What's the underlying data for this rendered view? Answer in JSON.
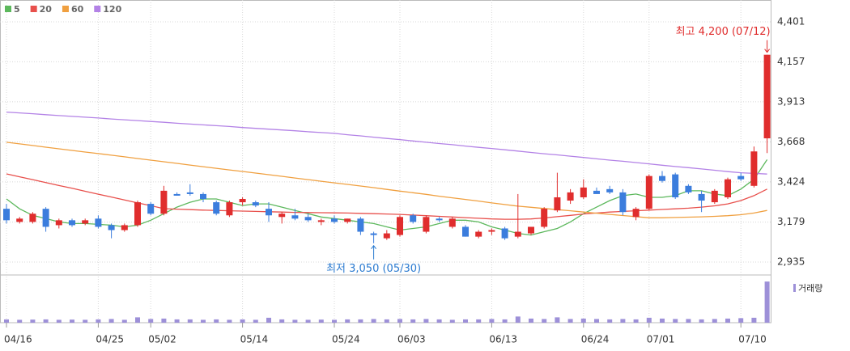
{
  "chart_data": {
    "type": "candlestick",
    "up_color": "#e02d2d",
    "down_color": "#3b7ddd",
    "categories": [
      "04/16",
      null,
      null,
      null,
      null,
      null,
      null,
      "04/25",
      null,
      null,
      null,
      "05/02",
      null,
      null,
      null,
      null,
      null,
      null,
      "05/14",
      null,
      null,
      null,
      null,
      null,
      null,
      "05/24",
      null,
      null,
      null,
      null,
      "06/03",
      null,
      null,
      null,
      null,
      null,
      null,
      "06/13",
      null,
      null,
      null,
      null,
      null,
      null,
      "06/24",
      null,
      null,
      null,
      null,
      "07/01",
      null,
      null,
      null,
      null,
      null,
      null,
      "07/10",
      null,
      null
    ],
    "open": [
      3260,
      3180,
      3180,
      3260,
      3160,
      3190,
      3170,
      3200,
      3160,
      3130,
      3160,
      3290,
      3230,
      3350,
      3360,
      3350,
      3300,
      3220,
      3300,
      3300,
      3260,
      3210,
      3220,
      3210,
      3180,
      3200,
      3180,
      3200,
      3110,
      3080,
      3100,
      3220,
      3120,
      3200,
      3150,
      3150,
      3090,
      3120,
      3140,
      3090,
      3110,
      3150,
      3250,
      3310,
      3330,
      3370,
      3380,
      3360,
      3210,
      3260,
      3460,
      3470,
      3400,
      3350,
      3300,
      3330,
      3460,
      3400,
      3690
    ],
    "high": [
      3290,
      3210,
      3240,
      3270,
      3200,
      3200,
      3200,
      3220,
      3170,
      3170,
      3310,
      3300,
      3400,
      3360,
      3410,
      3360,
      3310,
      3310,
      3330,
      3310,
      3300,
      3240,
      3260,
      3230,
      3200,
      3220,
      3200,
      3210,
      3120,
      3130,
      3220,
      3230,
      3220,
      3210,
      3210,
      3160,
      3130,
      3140,
      3150,
      3350,
      3150,
      3270,
      3480,
      3380,
      3440,
      3390,
      3400,
      3380,
      3270,
      3470,
      3490,
      3480,
      3410,
      3370,
      3380,
      3450,
      3480,
      3640,
      4200
    ],
    "low": [
      3170,
      3170,
      3170,
      3120,
      3140,
      3150,
      3160,
      3140,
      3080,
      3120,
      3150,
      3220,
      3220,
      3340,
      3340,
      3300,
      3220,
      3210,
      3280,
      3270,
      3180,
      3170,
      3190,
      3180,
      3160,
      3170,
      3170,
      3100,
      3050,
      3070,
      3090,
      3170,
      3110,
      3180,
      3140,
      3090,
      3080,
      3100,
      3070,
      3080,
      3100,
      3140,
      3240,
      3290,
      3320,
      3350,
      3350,
      3220,
      3190,
      3250,
      3420,
      3320,
      3350,
      3240,
      3290,
      3320,
      3430,
      3390,
      3600
    ],
    "close": [
      3190,
      3200,
      3230,
      3150,
      3190,
      3160,
      3190,
      3150,
      3130,
      3160,
      3300,
      3230,
      3370,
      3340,
      3350,
      3320,
      3230,
      3300,
      3320,
      3280,
      3220,
      3230,
      3200,
      3190,
      3190,
      3180,
      3200,
      3120,
      3100,
      3110,
      3210,
      3180,
      3210,
      3190,
      3200,
      3090,
      3120,
      3130,
      3080,
      3120,
      3150,
      3260,
      3330,
      3360,
      3390,
      3350,
      3360,
      3240,
      3260,
      3460,
      3430,
      3330,
      3360,
      3310,
      3370,
      3440,
      3440,
      3610,
      4200
    ],
    "series": [
      {
        "name": "5",
        "color": "#5cb85c",
        "values": [
          3320,
          3260,
          3220,
          3200,
          3180,
          3170,
          3170,
          3165,
          3160,
          3150,
          3160,
          3190,
          3230,
          3270,
          3300,
          3320,
          3320,
          3300,
          3280,
          3290,
          3290,
          3270,
          3250,
          3230,
          3210,
          3200,
          3190,
          3180,
          3170,
          3150,
          3130,
          3140,
          3150,
          3170,
          3190,
          3190,
          3180,
          3150,
          3130,
          3110,
          3100,
          3120,
          3140,
          3180,
          3230,
          3270,
          3310,
          3340,
          3350,
          3330,
          3330,
          3340,
          3370,
          3370,
          3350,
          3340,
          3380,
          3440,
          3560
        ]
      },
      {
        "name": "20",
        "color": "#e8504c",
        "values": [
          3473,
          3455,
          3438,
          3420,
          3402,
          3385,
          3367,
          3349,
          3332,
          3314,
          3296,
          3279,
          3261,
          3258,
          3255,
          3252,
          3250,
          3248,
          3246,
          3244,
          3242,
          3240,
          3238,
          3237,
          3236,
          3235,
          3234,
          3232,
          3230,
          3228,
          3226,
          3222,
          3218,
          3214,
          3210,
          3206,
          3202,
          3198,
          3196,
          3196,
          3198,
          3204,
          3212,
          3220,
          3228,
          3234,
          3240,
          3244,
          3248,
          3252,
          3256,
          3260,
          3264,
          3270,
          3278,
          3290,
          3310,
          3340,
          3380
        ]
      },
      {
        "name": "60",
        "color": "#f0a040",
        "values": [
          3666,
          3656,
          3646,
          3636,
          3626,
          3616,
          3606,
          3597,
          3587,
          3577,
          3567,
          3557,
          3547,
          3537,
          3527,
          3517,
          3507,
          3497,
          3488,
          3478,
          3468,
          3458,
          3448,
          3438,
          3428,
          3418,
          3409,
          3399,
          3389,
          3378,
          3368,
          3358,
          3348,
          3337,
          3327,
          3317,
          3307,
          3296,
          3286,
          3276,
          3269,
          3262,
          3255,
          3248,
          3240,
          3233,
          3226,
          3219,
          3212,
          3205,
          3205,
          3207,
          3209,
          3211,
          3214,
          3218,
          3224,
          3234,
          3250
        ]
      },
      {
        "name": "120",
        "color": "#b382e6",
        "values": [
          3850,
          3845,
          3840,
          3834,
          3829,
          3824,
          3819,
          3814,
          3808,
          3803,
          3798,
          3793,
          3788,
          3782,
          3777,
          3772,
          3767,
          3762,
          3756,
          3751,
          3746,
          3741,
          3736,
          3730,
          3725,
          3720,
          3712,
          3705,
          3697,
          3689,
          3682,
          3674,
          3666,
          3658,
          3651,
          3643,
          3635,
          3628,
          3620,
          3612,
          3604,
          3596,
          3589,
          3581,
          3573,
          3565,
          3557,
          3550,
          3542,
          3534,
          3526,
          3518,
          3511,
          3503,
          3495,
          3487,
          3480,
          3476,
          3472
        ]
      }
    ],
    "ylim": [
      2866,
      4534
    ],
    "yticks": [
      {
        "value": 2935,
        "label": "2,935"
      },
      {
        "value": 3179,
        "label": "3,179"
      },
      {
        "value": 3424,
        "label": "3,424"
      },
      {
        "value": 3668,
        "label": "3,668"
      },
      {
        "value": 3913,
        "label": "3,913"
      },
      {
        "value": 4157,
        "label": "4,157"
      },
      {
        "value": 4401,
        "label": "4,401"
      }
    ],
    "grid": true,
    "legend": "top-left",
    "volume": {
      "name": "거래량",
      "color": "#9d90d8",
      "ylim": [
        0,
        1120
      ],
      "values": [
        80,
        70,
        75,
        80,
        70,
        75,
        70,
        80,
        90,
        70,
        130,
        90,
        100,
        80,
        80,
        70,
        80,
        70,
        80,
        70,
        120,
        80,
        70,
        70,
        75,
        70,
        80,
        80,
        90,
        80,
        90,
        80,
        90,
        80,
        70,
        80,
        80,
        90,
        80,
        150,
        100,
        90,
        130,
        90,
        100,
        90,
        80,
        90,
        80,
        120,
        100,
        90,
        90,
        80,
        90,
        100,
        110,
        120,
        1000
      ]
    },
    "annotations": [
      {
        "text": "최고 4,200 (07/12)",
        "index": 58,
        "kind": "high",
        "color": "#e02d2d"
      },
      {
        "text": "최저 3,050 (05/30)",
        "index": 28,
        "kind": "low",
        "color": "#2a7ad0"
      }
    ]
  }
}
